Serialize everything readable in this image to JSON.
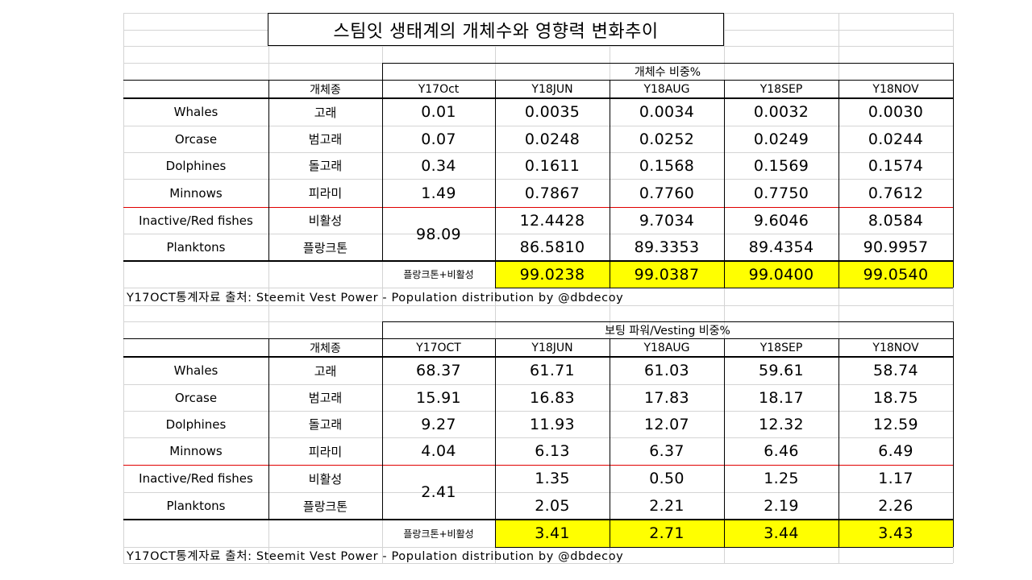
{
  "title": "스팀잇 생태계의 개체수와 영향력 변화추이",
  "highlight_color": "#ffff00",
  "separator_color": "#e00000",
  "population": {
    "group_header": "개체수 비중%",
    "species_header": "개체종",
    "columns": [
      "Y17Oct",
      "Y18JUN",
      "Y18AUG",
      "Y18SEP",
      "Y18NOV"
    ],
    "rows": [
      {
        "en": "Whales",
        "ko": "고래",
        "values": [
          "0.01",
          "0.0035",
          "0.0034",
          "0.0032",
          "0.0030"
        ]
      },
      {
        "en": "Orcase",
        "ko": "범고래",
        "values": [
          "0.07",
          "0.0248",
          "0.0252",
          "0.0249",
          "0.0244"
        ]
      },
      {
        "en": "Dolphines",
        "ko": "돌고래",
        "values": [
          "0.34",
          "0.1611",
          "0.1568",
          "0.1569",
          "0.1574"
        ]
      },
      {
        "en": "Minnows",
        "ko": "피라미",
        "values": [
          "1.49",
          "0.7867",
          "0.7760",
          "0.7750",
          "0.7612"
        ]
      },
      {
        "en": "Inactive/Red fishes",
        "ko": "비활성",
        "values": [
          "12.4428",
          "9.7034",
          "9.6046",
          "8.0584"
        ]
      },
      {
        "en": "Planktons",
        "ko": "플랑크톤",
        "values": [
          "86.5810",
          "89.3353",
          "89.4354",
          "90.9957"
        ]
      }
    ],
    "merged_value": "98.09",
    "sum_label": "플랑크톤+비활성",
    "sum_values": [
      "99.0238",
      "99.0387",
      "99.0400",
      "99.0540"
    ],
    "source": "Y17OCT통계자료 출처:  Steemit Vest Power - Population distribution by @dbdecoy"
  },
  "voting": {
    "group_header": "보팅 파워/Vesting 비중%",
    "species_header": "개체종",
    "columns": [
      "Y17OCT",
      "Y18JUN",
      "Y18AUG",
      "Y18SEP",
      "Y18NOV"
    ],
    "rows": [
      {
        "en": "Whales",
        "ko": "고래",
        "values": [
          "68.37",
          "61.71",
          "61.03",
          "59.61",
          "58.74"
        ]
      },
      {
        "en": "Orcase",
        "ko": "범고래",
        "values": [
          "15.91",
          "16.83",
          "17.83",
          "18.17",
          "18.75"
        ]
      },
      {
        "en": "Dolphines",
        "ko": "돌고래",
        "values": [
          "9.27",
          "11.93",
          "12.07",
          "12.32",
          "12.59"
        ]
      },
      {
        "en": "Minnows",
        "ko": "피라미",
        "values": [
          "4.04",
          "6.13",
          "6.37",
          "6.46",
          "6.49"
        ]
      },
      {
        "en": "Inactive/Red fishes",
        "ko": "비활성",
        "values": [
          "1.35",
          "0.50",
          "1.25",
          "1.17"
        ]
      },
      {
        "en": "Planktons",
        "ko": "플랑크톤",
        "values": [
          "2.05",
          "2.21",
          "2.19",
          "2.26"
        ]
      }
    ],
    "merged_value": "2.41",
    "sum_label": "플랑크톤+비활성",
    "sum_values": [
      "3.41",
      "2.71",
      "3.44",
      "3.43"
    ],
    "source": "Y17OCT통계자료 출처:  Steemit Vest Power - Population distribution by @dbdecoy"
  }
}
